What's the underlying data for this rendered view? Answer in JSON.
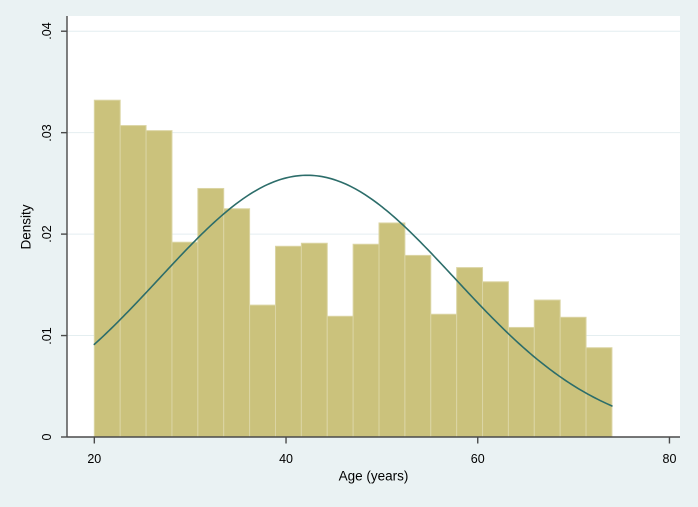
{
  "chart_data": {
    "type": "bar",
    "subtype": "histogram-with-normal-overlay",
    "title": "",
    "xlabel": "Age (years)",
    "ylabel": "Density",
    "x_ticks": [
      20,
      40,
      60,
      80
    ],
    "x_tick_labels": [
      "20",
      "40",
      "60",
      "80"
    ],
    "y_ticks": [
      0,
      0.01,
      0.02,
      0.03,
      0.04
    ],
    "y_tick_labels": [
      "0",
      ".01",
      ".02",
      ".03",
      ".04"
    ],
    "xlim": [
      17.15,
      81.1
    ],
    "ylim": [
      0,
      0.0415
    ],
    "grid": true,
    "legend": "none",
    "bins": {
      "start": 20,
      "width": 2.7,
      "count": 20
    },
    "densities": [
      0.0332,
      0.0307,
      0.0302,
      0.0192,
      0.0245,
      0.0225,
      0.013,
      0.0188,
      0.0191,
      0.0119,
      0.019,
      0.0211,
      0.0179,
      0.0121,
      0.0167,
      0.0153,
      0.0108,
      0.0135,
      0.0118,
      0.0088
    ],
    "normal_curve": {
      "mean": 42.2,
      "sd": 15.4,
      "peak_density": 0.0258,
      "x_start": 20,
      "x_end": 74
    },
    "colors": {
      "background": "#eaf2f3",
      "plot_background": "#ffffff",
      "gridline": "#e4eef0",
      "bar_fill": "#cbc27c",
      "bar_outline": "#dbd5a4",
      "curve": "#2c6d6a",
      "axis": "#4a4a4a",
      "text": "#000000"
    }
  }
}
